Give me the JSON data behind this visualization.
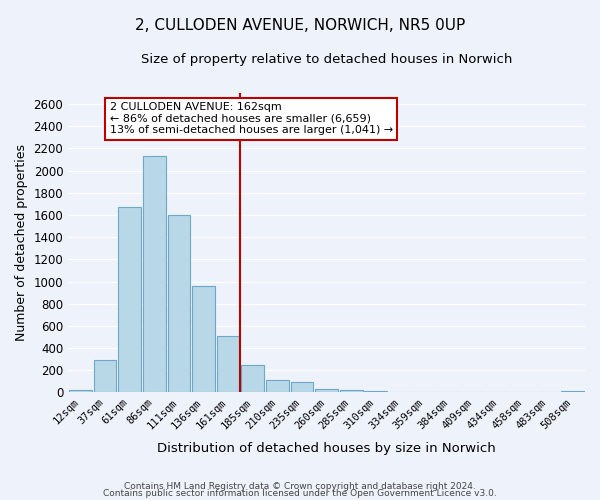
{
  "title": "2, CULLODEN AVENUE, NORWICH, NR5 0UP",
  "subtitle": "Size of property relative to detached houses in Norwich",
  "xlabel": "Distribution of detached houses by size in Norwich",
  "ylabel": "Number of detached properties",
  "bar_color": "#b8d8e8",
  "bar_edge_color": "#6ea8c8",
  "background_color": "#eef2fa",
  "grid_color": "#d8dff0",
  "bins": [
    "12sqm",
    "37sqm",
    "61sqm",
    "86sqm",
    "111sqm",
    "136sqm",
    "161sqm",
    "185sqm",
    "210sqm",
    "235sqm",
    "260sqm",
    "285sqm",
    "310sqm",
    "334sqm",
    "359sqm",
    "384sqm",
    "409sqm",
    "434sqm",
    "458sqm",
    "483sqm",
    "508sqm"
  ],
  "values": [
    20,
    295,
    1670,
    2130,
    1600,
    960,
    505,
    250,
    115,
    95,
    35,
    20,
    12,
    8,
    5,
    3,
    2,
    1,
    2,
    0,
    15
  ],
  "vline_pos": 6.5,
  "vline_color": "#bb0000",
  "ylim": [
    0,
    2700
  ],
  "yticks": [
    0,
    200,
    400,
    600,
    800,
    1000,
    1200,
    1400,
    1600,
    1800,
    2000,
    2200,
    2400,
    2600
  ],
  "annotation_title": "2 CULLODEN AVENUE: 162sqm",
  "annotation_line1": "← 86% of detached houses are smaller (6,659)",
  "annotation_line2": "13% of semi-detached houses are larger (1,041) →",
  "annotation_box_color": "#ffffff",
  "annotation_box_edge": "#bb0000",
  "footer1": "Contains HM Land Registry data © Crown copyright and database right 2024.",
  "footer2": "Contains public sector information licensed under the Open Government Licence v3.0."
}
